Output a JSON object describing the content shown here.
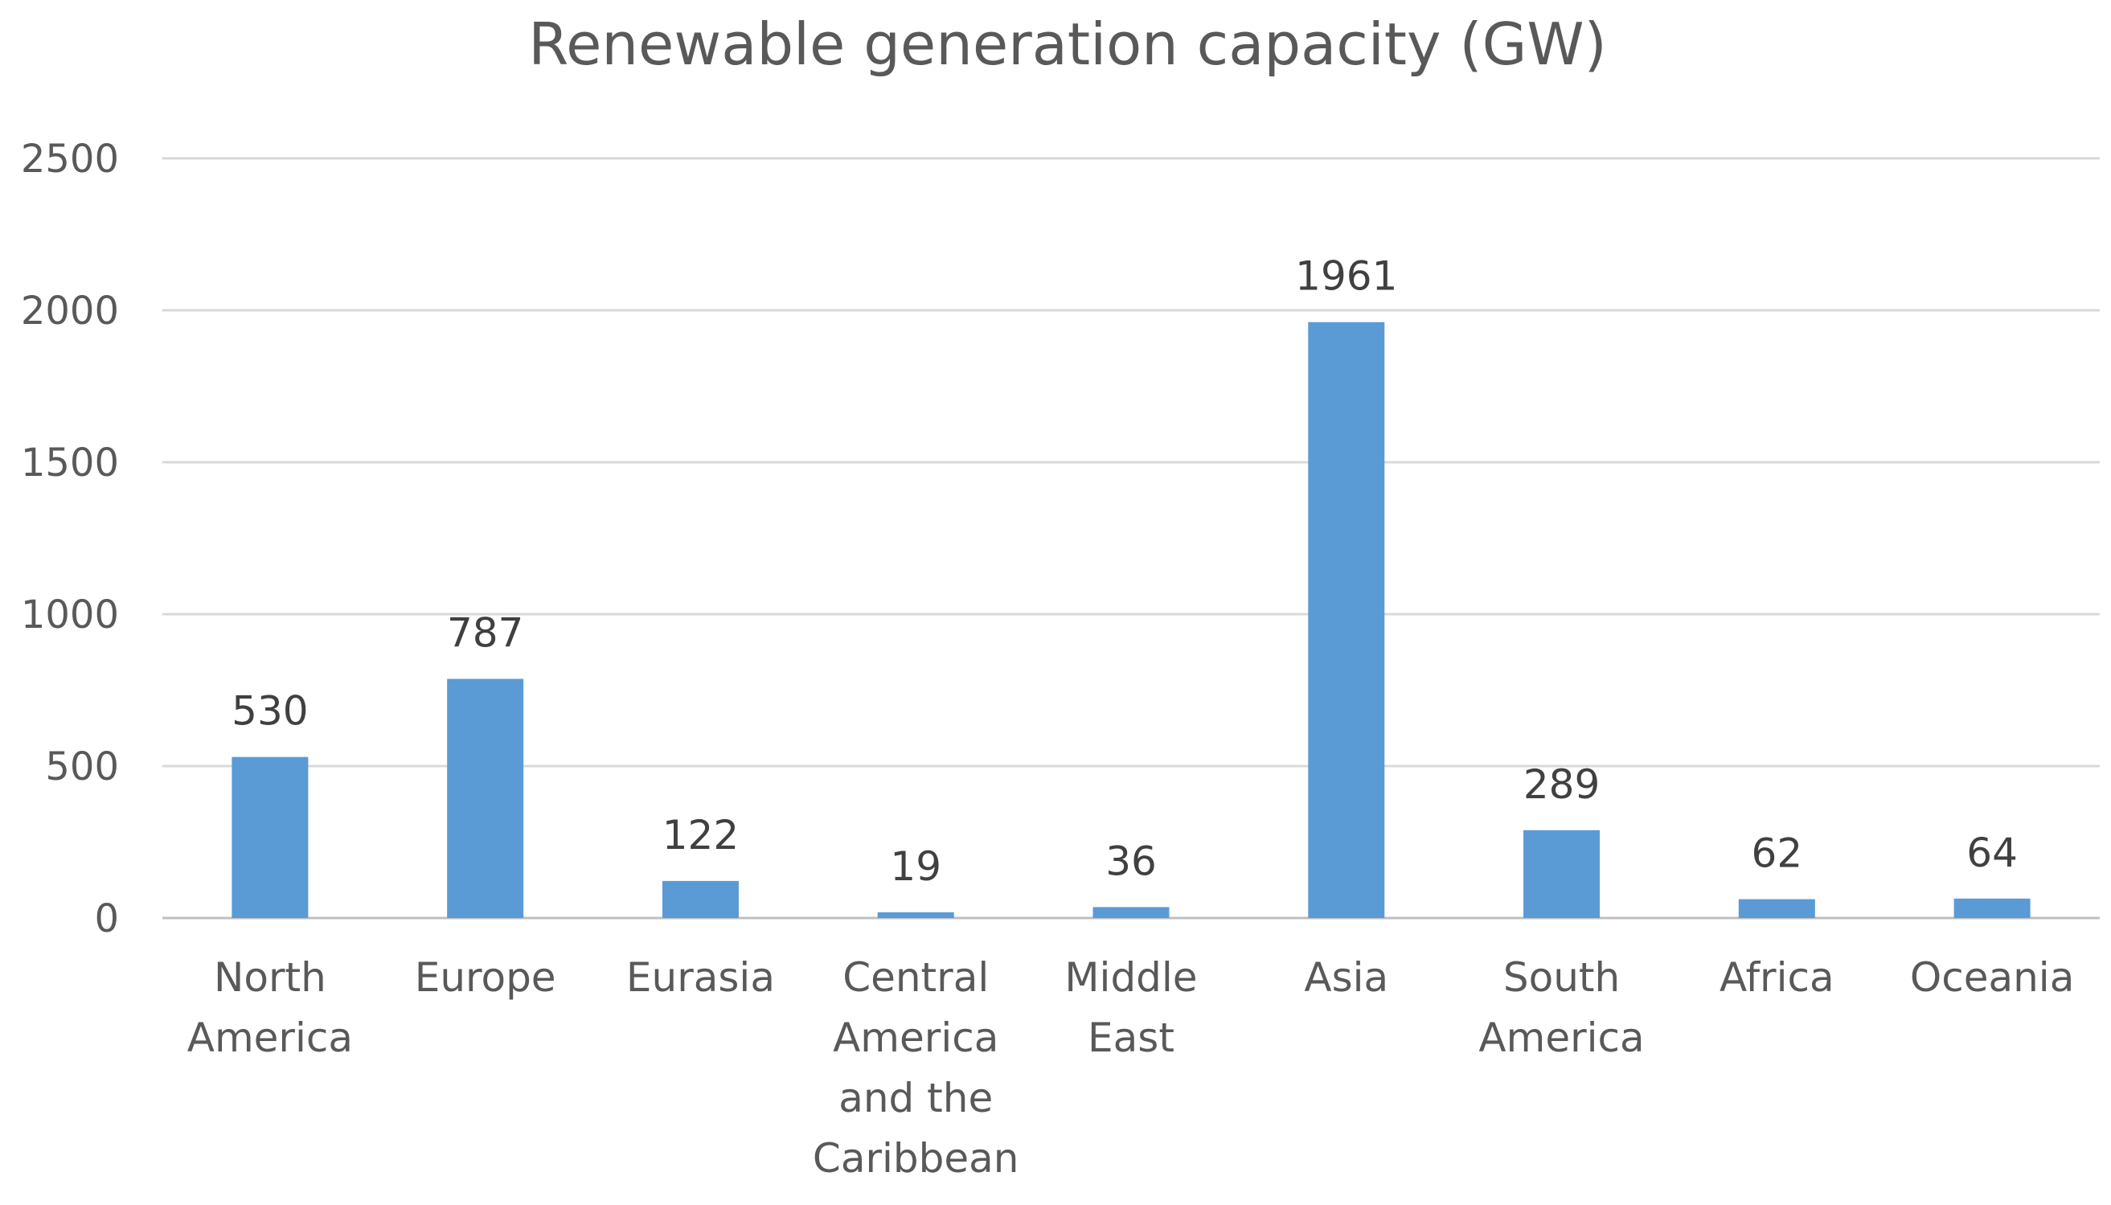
{
  "chart_data": {
    "type": "bar",
    "title": "Renewable generation capacity (GW)",
    "xlabel": "",
    "ylabel": "",
    "ylim": [
      0,
      2500
    ],
    "yticks": [
      0,
      500,
      1000,
      1500,
      2000,
      2500
    ],
    "grid": true,
    "legend": "none",
    "categories": [
      [
        "North",
        "America"
      ],
      [
        "Europe"
      ],
      [
        "Eurasia"
      ],
      [
        "Central",
        "America",
        "and the",
        "Caribbean"
      ],
      [
        "Middle",
        "East"
      ],
      [
        "Asia"
      ],
      [
        "South",
        "America"
      ],
      [
        "Africa"
      ],
      [
        "Oceania"
      ]
    ],
    "values": [
      530,
      787,
      122,
      19,
      36,
      1961,
      289,
      62,
      64
    ],
    "bar_color": "#5b9bd5"
  }
}
